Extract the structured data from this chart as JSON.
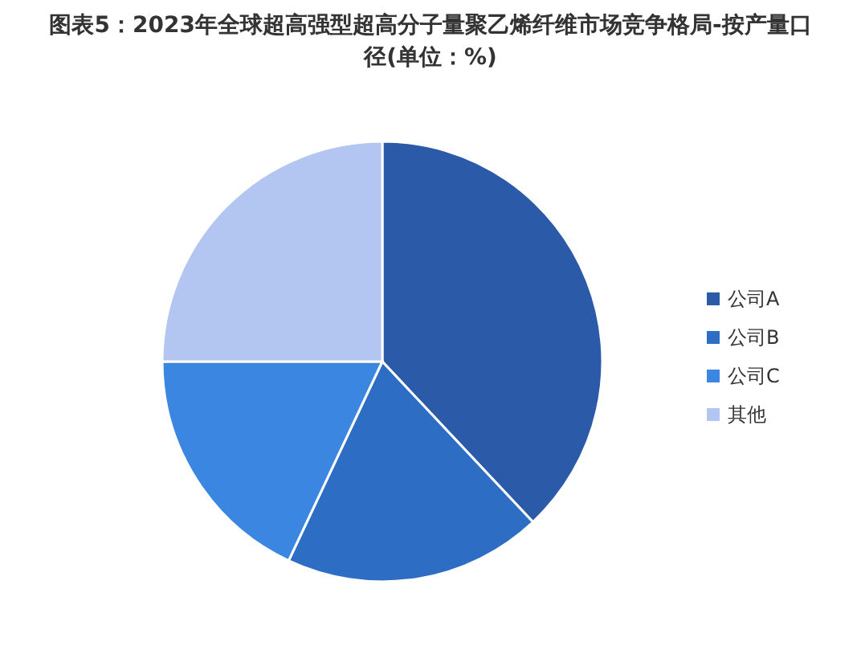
{
  "chart_data": {
    "type": "pie",
    "title": "图表5：2023年全球超高强型超高分子量聚乙烯纤维市场竞争格局-按产量口径(单位：%)",
    "categories": [
      "公司A",
      "公司B",
      "公司C",
      "其他"
    ],
    "values": [
      38,
      19,
      18,
      25
    ],
    "colors": [
      "#2b5ba8",
      "#2e6dc4",
      "#3b86e0",
      "#b3c5f1"
    ],
    "legend": "right"
  }
}
